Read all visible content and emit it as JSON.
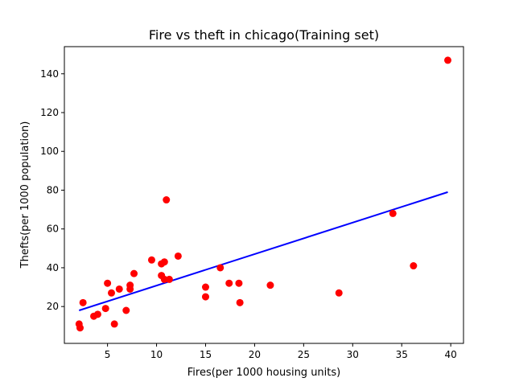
{
  "chart_data": {
    "type": "scatter",
    "title": "Fire vs theft in chicago(Training set)",
    "xlabel": "Fires(per 1000 housing units)",
    "ylabel": "Thefts(per 1000 population)",
    "xlim": [
      0.6,
      41.3
    ],
    "ylim": [
      1,
      154
    ],
    "xticks": [
      5,
      10,
      15,
      20,
      25,
      30,
      35,
      40
    ],
    "yticks": [
      20,
      40,
      60,
      80,
      100,
      120,
      140
    ],
    "grid": false,
    "series": [
      {
        "kind": "points",
        "color": "#ff0000",
        "points": [
          [
            2.1,
            11
          ],
          [
            2.2,
            9
          ],
          [
            2.5,
            22
          ],
          [
            3.6,
            15
          ],
          [
            4.0,
            16
          ],
          [
            4.8,
            19
          ],
          [
            5.0,
            32
          ],
          [
            5.4,
            27
          ],
          [
            5.7,
            11
          ],
          [
            6.2,
            29
          ],
          [
            6.9,
            18
          ],
          [
            7.3,
            29
          ],
          [
            7.3,
            31
          ],
          [
            7.7,
            37
          ],
          [
            9.5,
            44
          ],
          [
            10.5,
            36
          ],
          [
            10.5,
            42
          ],
          [
            10.8,
            43
          ],
          [
            10.8,
            34
          ],
          [
            11.0,
            75
          ],
          [
            11.3,
            34
          ],
          [
            12.2,
            46
          ],
          [
            15.0,
            30
          ],
          [
            15.0,
            25
          ],
          [
            16.5,
            40
          ],
          [
            17.4,
            32
          ],
          [
            18.4,
            32
          ],
          [
            18.5,
            22
          ],
          [
            21.6,
            31
          ],
          [
            28.6,
            27
          ],
          [
            34.1,
            68
          ],
          [
            36.2,
            41
          ],
          [
            39.7,
            147
          ]
        ]
      },
      {
        "kind": "line",
        "color": "#0000ff",
        "points": [
          [
            2.1,
            18
          ],
          [
            39.7,
            79
          ]
        ]
      }
    ]
  }
}
